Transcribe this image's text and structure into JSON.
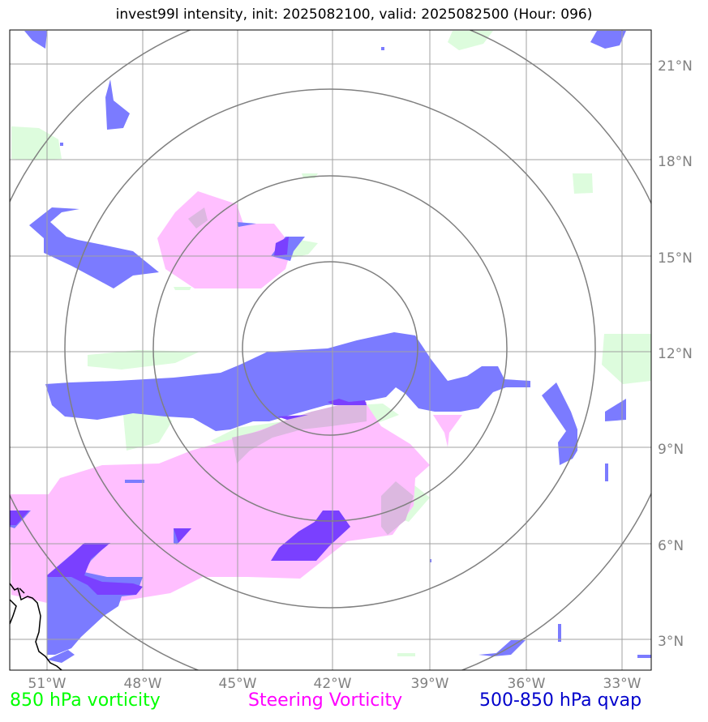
{
  "title": "invest99l intensity, init: 2025082100, valid: 2025082500 (Hour: 096)",
  "map": {
    "lon_range": [
      -52.5,
      -32.5
    ],
    "lat_range": [
      1.7,
      22.0
    ],
    "lon_ticks": [
      -51,
      -48,
      -45,
      -42,
      -39,
      -36,
      -33
    ],
    "lon_tick_labels": [
      "51°W",
      "48°W",
      "45°W",
      "42°W",
      "39°W",
      "36°W",
      "33°W"
    ],
    "lat_ticks": [
      3,
      6,
      9,
      12,
      15,
      18,
      21
    ],
    "lat_tick_labels": [
      "3°N",
      "6°N",
      "9°N",
      "12°N",
      "15°N",
      "18°N",
      "21°N"
    ],
    "storm_center": {
      "lon": -42.0,
      "lat": 12.1
    },
    "range_ring_colors": "#808080",
    "gridline_color": "#a0a0a0",
    "coastline_color": "#000000"
  },
  "legend": {
    "vort850": {
      "label": "850 hPa vorticity",
      "color": "#00ff00"
    },
    "steering": {
      "label": "Steering Vorticity",
      "color": "#ff00ff"
    },
    "qvap": {
      "label": "500-850 hPa qvap",
      "color": "#0000cc"
    }
  },
  "fills": {
    "vort850_color": "#ddfcdd",
    "steering_color": "#ffbfff",
    "qvap_color": "#7b7bff",
    "overlap_color": "#7a40ff"
  }
}
